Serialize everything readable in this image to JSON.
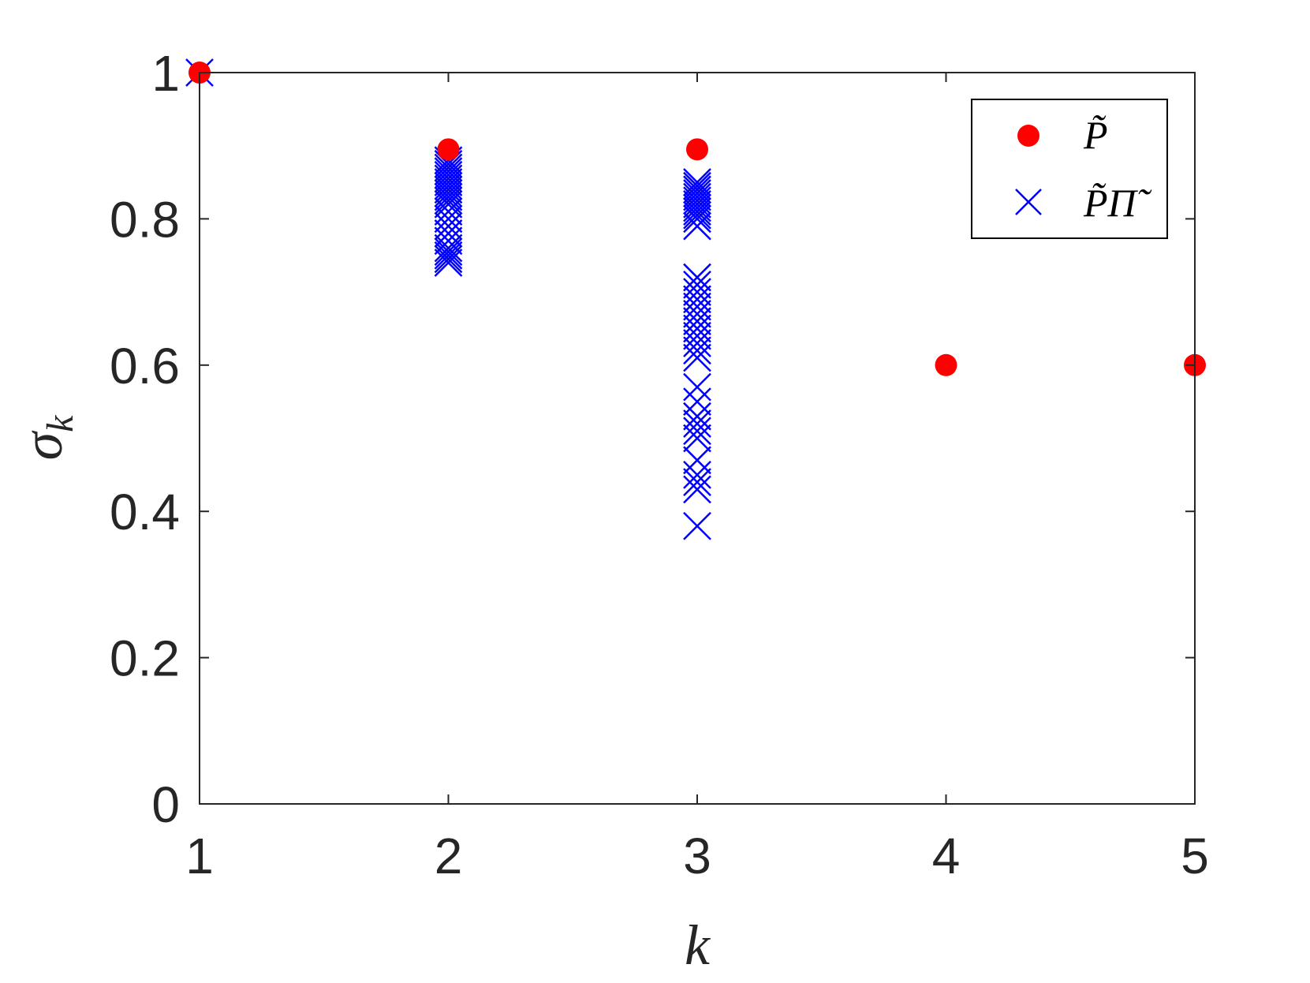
{
  "chart_data": {
    "type": "scatter",
    "xlabel": "k",
    "ylabel": "σ",
    "ylabel_subscript": "k",
    "xlim": [
      1,
      5
    ],
    "ylim": [
      0,
      1
    ],
    "xticks": [
      "1",
      "2",
      "3",
      "4",
      "5"
    ],
    "yticks": [
      "0",
      "0.2",
      "0.4",
      "0.6",
      "0.8",
      "1"
    ],
    "grid": false,
    "legend": "top-right",
    "series": [
      {
        "name": "P̃",
        "marker": "filled-circle",
        "color": "#ff0000",
        "points": [
          [
            1,
            1.0
          ],
          [
            2,
            0.895
          ],
          [
            3,
            0.895
          ],
          [
            4,
            0.6
          ],
          [
            5,
            0.6
          ]
        ]
      },
      {
        "name": "P̃Π̃",
        "marker": "x",
        "color": "#0000ff",
        "points": [
          [
            1,
            1.0
          ],
          [
            2,
            0.88
          ],
          [
            2,
            0.875
          ],
          [
            2,
            0.87
          ],
          [
            2,
            0.865
          ],
          [
            2,
            0.86
          ],
          [
            2,
            0.855
          ],
          [
            2,
            0.85
          ],
          [
            2,
            0.845
          ],
          [
            2,
            0.84
          ],
          [
            2,
            0.835
          ],
          [
            2,
            0.83
          ],
          [
            2,
            0.825
          ],
          [
            2,
            0.82
          ],
          [
            2,
            0.81
          ],
          [
            2,
            0.8
          ],
          [
            2,
            0.79
          ],
          [
            2,
            0.78
          ],
          [
            2,
            0.77
          ],
          [
            2,
            0.76
          ],
          [
            2,
            0.755
          ],
          [
            2,
            0.75
          ],
          [
            2,
            0.745
          ],
          [
            2,
            0.74
          ],
          [
            3,
            0.85
          ],
          [
            3,
            0.845
          ],
          [
            3,
            0.84
          ],
          [
            3,
            0.835
          ],
          [
            3,
            0.83
          ],
          [
            3,
            0.825
          ],
          [
            3,
            0.82
          ],
          [
            3,
            0.815
          ],
          [
            3,
            0.81
          ],
          [
            3,
            0.805
          ],
          [
            3,
            0.8
          ],
          [
            3,
            0.79
          ],
          [
            3,
            0.72
          ],
          [
            3,
            0.71
          ],
          [
            3,
            0.7
          ],
          [
            3,
            0.69
          ],
          [
            3,
            0.68
          ],
          [
            3,
            0.67
          ],
          [
            3,
            0.66
          ],
          [
            3,
            0.65
          ],
          [
            3,
            0.64
          ],
          [
            3,
            0.63
          ],
          [
            3,
            0.62
          ],
          [
            3,
            0.61
          ],
          [
            3,
            0.57
          ],
          [
            3,
            0.55
          ],
          [
            3,
            0.53
          ],
          [
            3,
            0.52
          ],
          [
            3,
            0.51
          ],
          [
            3,
            0.5
          ],
          [
            3,
            0.47
          ],
          [
            3,
            0.45
          ],
          [
            3,
            0.44
          ],
          [
            3,
            0.43
          ],
          [
            3,
            0.38
          ]
        ]
      }
    ]
  }
}
